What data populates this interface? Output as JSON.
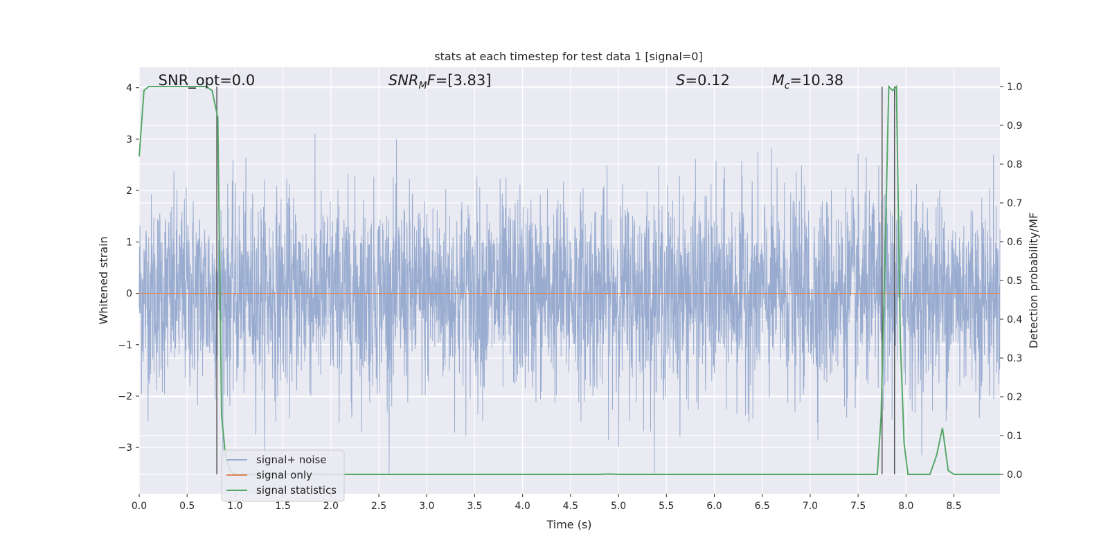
{
  "chart_data": {
    "type": "line",
    "title": "stats at each timestep for test data 1 [signal=0]",
    "xlabel": "Time (s)",
    "ylabel": "Whitened strain",
    "y2label": "Detection probability/MF",
    "xlim": [
      0.0,
      8.98
    ],
    "ylim": [
      -3.9,
      4.4
    ],
    "y2lim": [
      -0.05,
      1.05
    ],
    "xticks": [
      0.0,
      0.5,
      1.0,
      1.5,
      2.0,
      2.5,
      3.0,
      3.5,
      4.0,
      4.5,
      5.0,
      5.5,
      6.0,
      6.5,
      7.0,
      7.5,
      8.0,
      8.5
    ],
    "xtick_labels": [
      "0.0",
      "0.5",
      "1.0",
      "1.5",
      "2.0",
      "2.5",
      "3.0",
      "3.5",
      "4.0",
      "4.5",
      "5.0",
      "5.5",
      "6.0",
      "6.5",
      "7.0",
      "7.5",
      "8.0",
      "8.5"
    ],
    "yticks": [
      -3,
      -2,
      -1,
      0,
      1,
      2,
      3,
      4
    ],
    "ytick_labels": [
      "−3",
      "−2",
      "−1",
      "0",
      "1",
      "2",
      "3",
      "4"
    ],
    "y2ticks": [
      0.0,
      0.1,
      0.2,
      0.3,
      0.4,
      0.5,
      0.6,
      0.7,
      0.8,
      0.9,
      1.0
    ],
    "y2tick_labels": [
      "0.0",
      "0.1",
      "0.2",
      "0.3",
      "0.4",
      "0.5",
      "0.6",
      "0.7",
      "0.8",
      "0.9",
      "1.0"
    ],
    "grid": true,
    "legend_position": "lower-left",
    "colors": {
      "background": "#eaeaf2",
      "grid": "#ffffff",
      "noise": "#99acd0",
      "signal": "#dd8452",
      "stats": "#55a868",
      "vlines": "#555555"
    },
    "series": [
      {
        "name": "signal+ noise",
        "kind": "noise",
        "x_range": [
          0.0,
          8.98
        ],
        "approx_amplitude": 2.5
      },
      {
        "name": "signal only",
        "kind": "constant",
        "value": 0.0
      },
      {
        "name": "signal statistics",
        "axis": "right",
        "x": [
          0.0,
          0.05,
          0.1,
          0.15,
          0.2,
          0.3,
          0.4,
          0.5,
          0.6,
          0.7,
          0.76,
          0.82,
          0.86,
          0.9,
          0.95,
          1.0,
          1.5,
          2.0,
          3.0,
          4.0,
          4.5,
          4.8,
          4.9,
          5.0,
          5.5,
          6.0,
          7.0,
          7.5,
          7.7,
          7.74,
          7.78,
          7.82,
          7.86,
          7.9,
          7.94,
          7.98,
          8.02,
          8.1,
          8.2,
          8.25,
          8.32,
          8.38,
          8.44,
          8.5,
          8.7,
          8.98
        ],
        "y": [
          0.82,
          0.99,
          1.0,
          1.0,
          1.0,
          1.0,
          1.0,
          1.0,
          1.0,
          1.0,
          0.99,
          0.92,
          0.15,
          0.05,
          0.01,
          0.0,
          0.0,
          0.0,
          0.0,
          0.0,
          0.0,
          0.0,
          0.001,
          0.0,
          0.0,
          0.0,
          0.0,
          0.0,
          0.0,
          0.15,
          0.55,
          1.0,
          0.99,
          1.0,
          0.35,
          0.08,
          0.0,
          0.0,
          0.0,
          0.0,
          0.05,
          0.12,
          0.01,
          0.0,
          0.0,
          0.0
        ]
      }
    ],
    "vlines": [
      0.81,
      7.75,
      7.88
    ],
    "annotations": [
      {
        "name": "snr-opt",
        "text": "SNR_opt=0.0",
        "x": 0.2
      },
      {
        "name": "snr-mf",
        "parts": [
          {
            "t": "SNR",
            "i": true
          },
          {
            "t": "M",
            "i": true,
            "sub": true
          },
          {
            "t": "F",
            "i": true
          },
          {
            "t": "=[3.83]"
          }
        ],
        "x": 2.6
      },
      {
        "name": "s-value",
        "parts": [
          {
            "t": "S",
            "i": true
          },
          {
            "t": "=0.12"
          }
        ],
        "x": 5.6
      },
      {
        "name": "mc-value",
        "parts": [
          {
            "t": "M",
            "i": true
          },
          {
            "t": "c",
            "i": true,
            "sub": true
          },
          {
            "t": "=10.38"
          }
        ],
        "x": 6.6
      }
    ]
  }
}
